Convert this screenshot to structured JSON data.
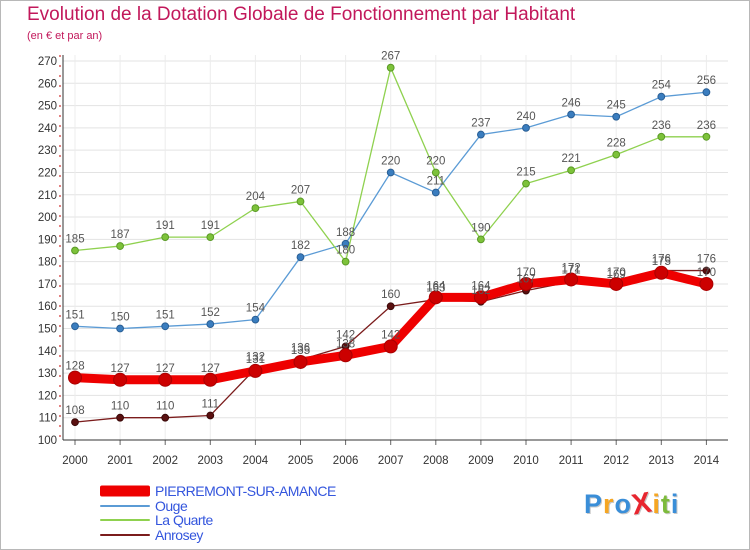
{
  "title": "Evolution de la Dotation Globale de Fonctionnement par Habitant",
  "subtitle": "(en € et par an)",
  "logo": {
    "text": "ProXiti",
    "letters": [
      {
        "char": "P",
        "color": "#3a8ed8"
      },
      {
        "char": "r",
        "color": "#f5a623"
      },
      {
        "char": "o",
        "color": "#3a8ed8"
      },
      {
        "char": "X",
        "color": "#e8262f"
      },
      {
        "char": "i",
        "color": "#f5a623"
      },
      {
        "char": "t",
        "color": "#7dbb3c"
      },
      {
        "char": "i",
        "color": "#3a8ed8"
      }
    ]
  },
  "chart_data": {
    "type": "line",
    "title": "Evolution de la Dotation Globale de Fonctionnement par Habitant",
    "subtitle": "(en € et par an)",
    "x": [
      2000,
      2001,
      2002,
      2003,
      2004,
      2005,
      2006,
      2007,
      2008,
      2009,
      2010,
      2011,
      2012,
      2013,
      2014
    ],
    "ylim": [
      100,
      270
    ],
    "yticks": [
      100,
      110,
      120,
      130,
      140,
      150,
      160,
      170,
      180,
      190,
      200,
      210,
      220,
      230,
      240,
      250,
      260,
      270
    ],
    "grid": true,
    "legend_position": "bottom-left",
    "series": [
      {
        "name": "PIERREMONT-SUR-AMANCE",
        "color": "#ee0000",
        "values": [
          128,
          127,
          127,
          127,
          131,
          135,
          138,
          142,
          164,
          164,
          170,
          172,
          170,
          175,
          170
        ]
      },
      {
        "name": "Ouge",
        "color": "#5b9bd5",
        "values": [
          151,
          150,
          151,
          152,
          154,
          182,
          188,
          220,
          211,
          237,
          240,
          246,
          245,
          254,
          256
        ]
      },
      {
        "name": "La Quarte",
        "color": "#8fd14f",
        "values": [
          185,
          187,
          191,
          191,
          204,
          207,
          180,
          267,
          220,
          190,
          215,
          221,
          228,
          236,
          236
        ]
      },
      {
        "name": "Anrosey",
        "color": "#7b1c1c",
        "values": [
          108,
          110,
          110,
          111,
          132,
          136,
          142,
          160,
          163,
          162,
          167,
          171,
          169,
          176,
          176
        ]
      }
    ]
  }
}
